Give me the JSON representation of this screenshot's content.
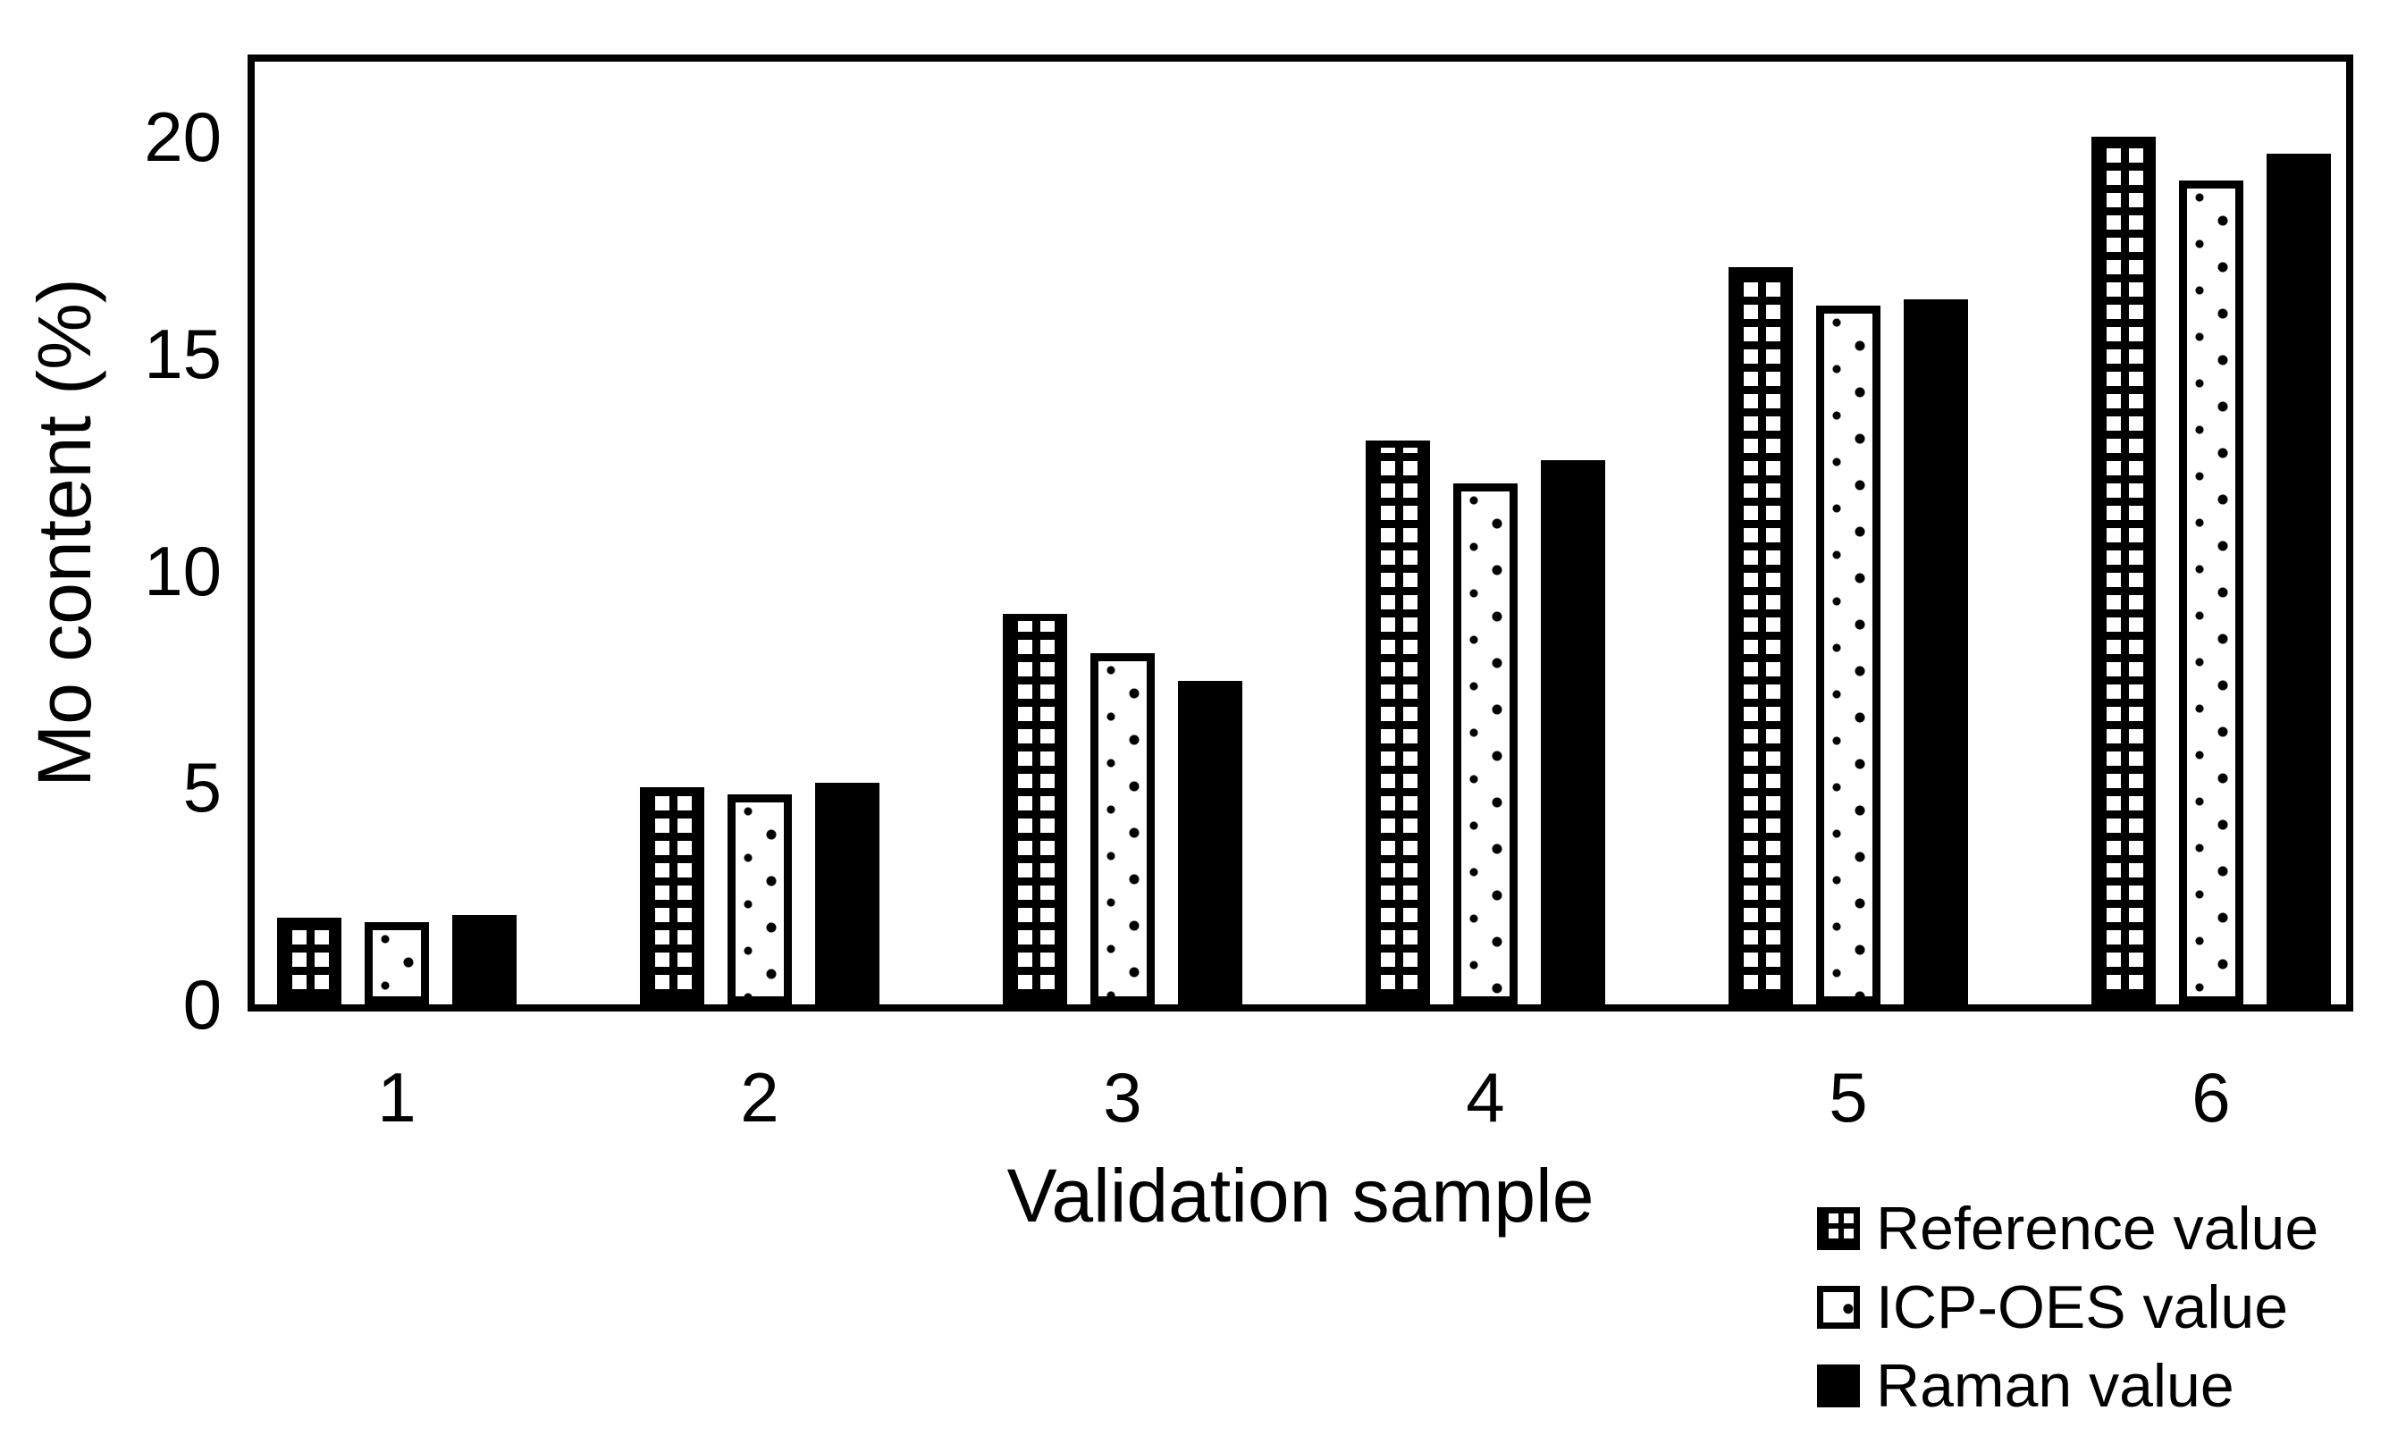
{
  "figure": {
    "background_color": "#ffffff",
    "foreground_color": "#000000"
  },
  "chart_data": {
    "type": "bar",
    "title": "",
    "xlabel": "Validation sample",
    "ylabel": "Mo content (%)",
    "categories": [
      "1",
      "2",
      "3",
      "4",
      "5",
      "6"
    ],
    "series": [
      {
        "name": "Reference value",
        "pattern": "grid",
        "swatch_icon": "crosshatch-square-icon",
        "values": [
          2.0,
          5.0,
          9.0,
          13.0,
          17.0,
          20.0
        ]
      },
      {
        "name": "ICP-OES value",
        "pattern": "dots",
        "swatch_icon": "dotted-square-icon",
        "values": [
          1.9,
          4.85,
          8.1,
          12.0,
          16.1,
          19.0
        ]
      },
      {
        "name": "Raman value",
        "pattern": "solid",
        "swatch_icon": "filled-square-icon",
        "values": [
          2.05,
          5.1,
          7.45,
          12.55,
          16.25,
          19.6
        ]
      }
    ],
    "yticks": [
      0,
      5,
      10,
      15,
      20
    ],
    "ylim": [
      0,
      21.8
    ],
    "grid": false,
    "legend_position": "bottom-right",
    "frame": "full-box"
  }
}
